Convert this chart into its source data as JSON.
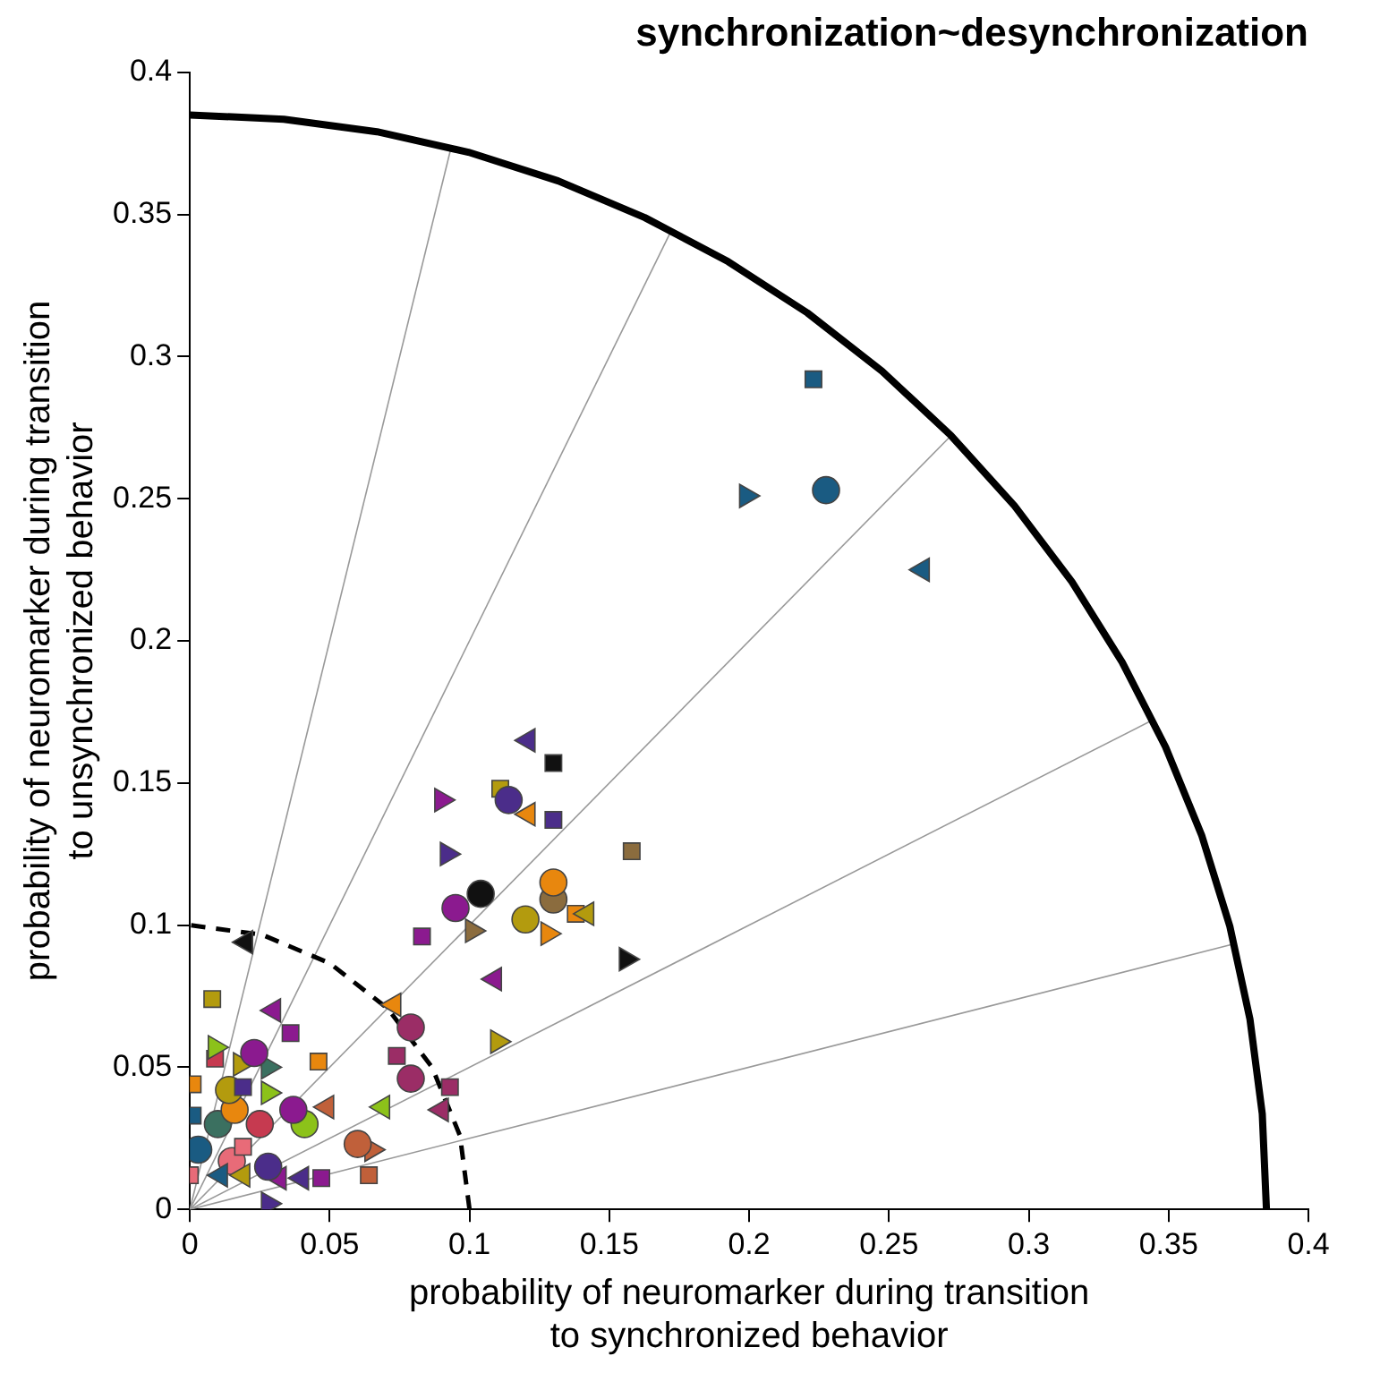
{
  "chart_data": {
    "type": "scatter",
    "title": "synchronization~desynchronization",
    "xlabel": "probability of neuromarker during transition\nto synchronized behavior",
    "ylabel": "probability of neuromarker during transition\nto unsynchronized behavior",
    "xlim": [
      0,
      0.4
    ],
    "ylim": [
      0,
      0.4
    ],
    "xticks": [
      0,
      0.05,
      0.1,
      0.15,
      0.2,
      0.25,
      0.3,
      0.35,
      0.4
    ],
    "yticks": [
      0,
      0.05,
      0.1,
      0.15,
      0.2,
      0.25,
      0.3,
      0.35,
      0.4
    ],
    "grid": false,
    "legend": false,
    "series": [
      {
        "type": "line",
        "color": "#000000",
        "line_style": "solid",
        "marker": "none",
        "x": [
          0.385,
          0.3835,
          0.3791,
          0.3719,
          0.3618,
          0.3489,
          0.3334,
          0.3154,
          0.2949,
          0.2722,
          0.2475,
          0.2208,
          0.1925,
          0.1627,
          0.1317,
          0.0996,
          0.0669,
          0.0336,
          0
        ],
        "values": [
          0,
          0.0336,
          0.0669,
          0.0996,
          0.1317,
          0.1627,
          0.1925,
          0.2208,
          0.2475,
          0.2722,
          0.2949,
          0.3154,
          0.3334,
          0.3489,
          0.3618,
          0.3719,
          0.3791,
          0.3835,
          0.385
        ]
      },
      {
        "type": "line",
        "color": "#000000",
        "line_style": "dashed",
        "marker": "none",
        "x": [
          0.1,
          0.0966,
          0.0866,
          0.0707,
          0.05,
          0.0259,
          0
        ],
        "values": [
          0,
          0.0259,
          0.05,
          0.0707,
          0.0866,
          0.0966,
          0.1
        ]
      },
      {
        "type": "line",
        "color": "#999999",
        "line_style": "solid",
        "marker": "none",
        "x": [
          0,
          0.3735
        ],
        "values": [
          0,
          0.0934
        ]
      },
      {
        "type": "line",
        "color": "#999999",
        "line_style": "solid",
        "marker": "none",
        "x": [
          0,
          0.3444
        ],
        "values": [
          0,
          0.1722
        ]
      },
      {
        "type": "line",
        "color": "#999999",
        "line_style": "solid",
        "marker": "none",
        "x": [
          0,
          0.2722
        ],
        "values": [
          0,
          0.2722
        ]
      },
      {
        "type": "line",
        "color": "#999999",
        "line_style": "solid",
        "marker": "none",
        "x": [
          0,
          0.1722
        ],
        "values": [
          0,
          0.3444
        ]
      },
      {
        "type": "line",
        "color": "#999999",
        "line_style": "solid",
        "marker": "none",
        "x": [
          0,
          0.0934
        ],
        "values": [
          0,
          0.3735
        ]
      },
      {
        "type": "scatter",
        "color": "#1a5b82",
        "marker": "square",
        "x": [
          0.223,
          0.001
        ],
        "values": [
          0.292,
          0.033
        ]
      },
      {
        "type": "scatter",
        "color": "#1a5b82",
        "marker": "circle",
        "x": [
          0.2275,
          0.003
        ],
        "values": [
          0.253,
          0.021
        ]
      },
      {
        "type": "scatter",
        "color": "#1a5b82",
        "marker": "triangle-right",
        "x": [
          0.199
        ],
        "values": [
          0.251
        ]
      },
      {
        "type": "scatter",
        "color": "#1a5b82",
        "marker": "triangle-left",
        "x": [
          0.262,
          0.011
        ],
        "values": [
          0.225,
          0.012
        ]
      },
      {
        "type": "scatter",
        "color": "#4b2d8a",
        "marker": "triangle-left",
        "x": [
          0.121,
          0.04
        ],
        "values": [
          0.165,
          0.011
        ]
      },
      {
        "type": "scatter",
        "color": "#4b2d8a",
        "marker": "circle",
        "x": [
          0.114,
          0.028
        ],
        "values": [
          0.144,
          0.015
        ]
      },
      {
        "type": "scatter",
        "color": "#4b2d8a",
        "marker": "square",
        "x": [
          0.13,
          0.019
        ],
        "values": [
          0.137,
          0.043
        ]
      },
      {
        "type": "scatter",
        "color": "#4b2d8a",
        "marker": "triangle-right",
        "x": [
          0.092,
          0.028
        ],
        "values": [
          0.125,
          0.002
        ]
      },
      {
        "type": "scatter",
        "color": "#111111",
        "marker": "square",
        "x": [
          0.13
        ],
        "values": [
          0.157
        ]
      },
      {
        "type": "scatter",
        "color": "#111111",
        "marker": "circle",
        "x": [
          0.104
        ],
        "values": [
          0.111
        ]
      },
      {
        "type": "scatter",
        "color": "#111111",
        "marker": "triangle-right",
        "x": [
          0.156
        ],
        "values": [
          0.088
        ]
      },
      {
        "type": "scatter",
        "color": "#111111",
        "marker": "triangle-left",
        "x": [
          0.02
        ],
        "values": [
          0.094
        ]
      },
      {
        "type": "scatter",
        "color": "#8b1a8f",
        "marker": "triangle-right",
        "x": [
          0.09
        ],
        "values": [
          0.144
        ]
      },
      {
        "type": "scatter",
        "color": "#8b1a8f",
        "marker": "circle",
        "x": [
          0.095,
          0.023,
          0.037
        ],
        "values": [
          0.106,
          0.055,
          0.035
        ]
      },
      {
        "type": "scatter",
        "color": "#8b1a8f",
        "marker": "square",
        "x": [
          0.083,
          0.036,
          0.047
        ],
        "values": [
          0.096,
          0.062,
          0.011
        ]
      },
      {
        "type": "scatter",
        "color": "#8b1a8f",
        "marker": "triangle-left",
        "x": [
          0.109,
          0.03,
          0.032
        ],
        "values": [
          0.081,
          0.07,
          0.011
        ]
      },
      {
        "type": "scatter",
        "color": "#b39b0e",
        "marker": "square",
        "x": [
          0.111,
          0.008
        ],
        "values": [
          0.148,
          0.074
        ]
      },
      {
        "type": "scatter",
        "color": "#b39b0e",
        "marker": "circle",
        "x": [
          0.12,
          0.014
        ],
        "values": [
          0.102,
          0.042
        ]
      },
      {
        "type": "scatter",
        "color": "#b39b0e",
        "marker": "triangle-left",
        "x": [
          0.142,
          0.019
        ],
        "values": [
          0.104,
          0.012
        ]
      },
      {
        "type": "scatter",
        "color": "#b39b0e",
        "marker": "triangle-right",
        "x": [
          0.11,
          0.018
        ],
        "values": [
          0.059,
          0.051
        ]
      },
      {
        "type": "scatter",
        "color": "#e8870e",
        "marker": "triangle-left",
        "x": [
          0.121,
          0.073
        ],
        "values": [
          0.139,
          0.072
        ]
      },
      {
        "type": "scatter",
        "color": "#e8870e",
        "marker": "circle",
        "x": [
          0.13,
          0.016
        ],
        "values": [
          0.115,
          0.035
        ]
      },
      {
        "type": "scatter",
        "color": "#e8870e",
        "marker": "square",
        "x": [
          0.138,
          0.046,
          0.001
        ],
        "values": [
          0.104,
          0.052,
          0.044
        ]
      },
      {
        "type": "scatter",
        "color": "#e8870e",
        "marker": "triangle-right",
        "x": [
          0.128
        ],
        "values": [
          0.097
        ]
      },
      {
        "type": "scatter",
        "color": "#8b6c3e",
        "marker": "square",
        "x": [
          0.158
        ],
        "values": [
          0.126
        ]
      },
      {
        "type": "scatter",
        "color": "#8b6c3e",
        "marker": "triangle-right",
        "x": [
          0.101
        ],
        "values": [
          0.098
        ]
      },
      {
        "type": "scatter",
        "color": "#8b6c3e",
        "marker": "circle",
        "x": [
          0.13
        ],
        "values": [
          0.109
        ]
      },
      {
        "type": "scatter",
        "color": "#9b2d66",
        "marker": "circle",
        "x": [
          0.079,
          0.079
        ],
        "values": [
          0.064,
          0.046
        ]
      },
      {
        "type": "scatter",
        "color": "#9b2d66",
        "marker": "square",
        "x": [
          0.074,
          0.093
        ],
        "values": [
          0.054,
          0.043
        ]
      },
      {
        "type": "scatter",
        "color": "#9b2d66",
        "marker": "triangle-left",
        "x": [
          0.09
        ],
        "values": [
          0.035
        ]
      },
      {
        "type": "scatter",
        "color": "#8cc21a",
        "marker": "triangle-left",
        "x": [
          0.069
        ],
        "values": [
          0.036
        ]
      },
      {
        "type": "scatter",
        "color": "#8cc21a",
        "marker": "triangle-right",
        "x": [
          0.009,
          0.028
        ],
        "values": [
          0.057,
          0.041
        ]
      },
      {
        "type": "scatter",
        "color": "#8cc21a",
        "marker": "circle",
        "x": [
          0.041
        ],
        "values": [
          0.03
        ]
      },
      {
        "type": "scatter",
        "color": "#c0603a",
        "marker": "circle",
        "x": [
          0.06
        ],
        "values": [
          0.023
        ]
      },
      {
        "type": "scatter",
        "color": "#c0603a",
        "marker": "triangle-right",
        "x": [
          0.065
        ],
        "values": [
          0.021
        ]
      },
      {
        "type": "scatter",
        "color": "#c0603a",
        "marker": "square",
        "x": [
          0.064
        ],
        "values": [
          0.012
        ]
      },
      {
        "type": "scatter",
        "color": "#c0603a",
        "marker": "triangle-left",
        "x": [
          0.049
        ],
        "values": [
          0.036
        ]
      },
      {
        "type": "scatter",
        "color": "#c63a50",
        "marker": "square",
        "x": [
          0.009
        ],
        "values": [
          0.053
        ]
      },
      {
        "type": "scatter",
        "color": "#c63a50",
        "marker": "circle",
        "x": [
          0.025
        ],
        "values": [
          0.03
        ]
      },
      {
        "type": "scatter",
        "color": "#3b7060",
        "marker": "circle",
        "x": [
          0.01
        ],
        "values": [
          0.03
        ]
      },
      {
        "type": "scatter",
        "color": "#3b7060",
        "marker": "triangle-right",
        "x": [
          0.028
        ],
        "values": [
          0.05
        ]
      },
      {
        "type": "scatter",
        "color": "#e86b78",
        "marker": "square",
        "x": [
          0,
          0.019
        ],
        "values": [
          0.012,
          0.022
        ]
      },
      {
        "type": "scatter",
        "color": "#e86b78",
        "marker": "circle",
        "x": [
          0.015
        ],
        "values": [
          0.017
        ]
      }
    ]
  }
}
